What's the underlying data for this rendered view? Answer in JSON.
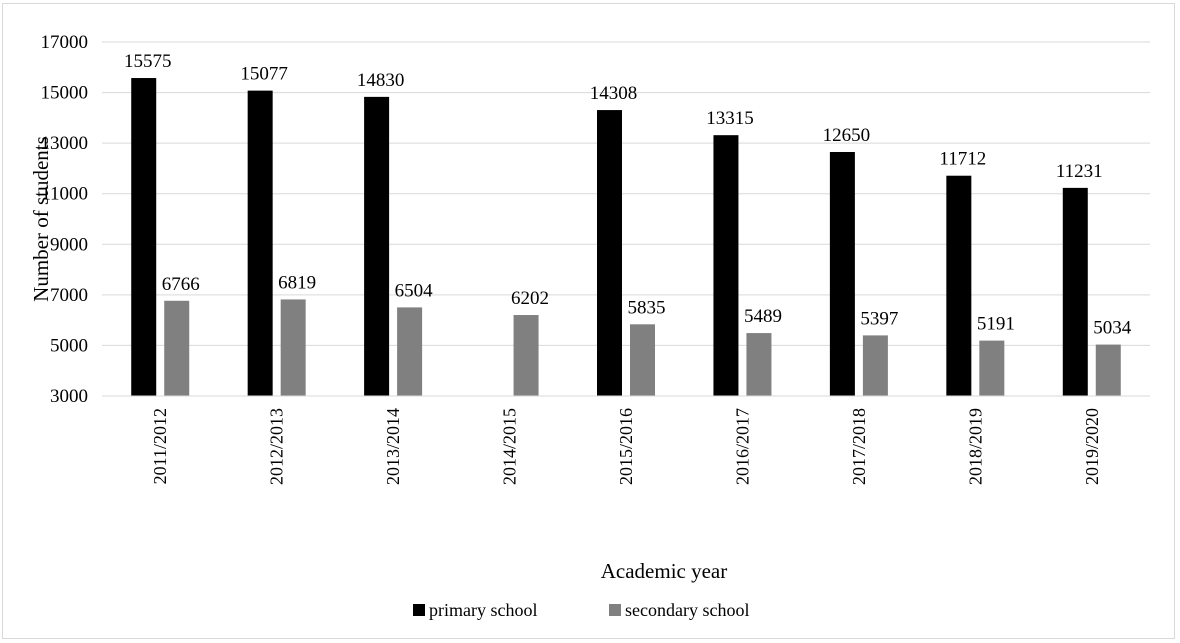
{
  "chart_data": {
    "type": "bar",
    "categories": [
      "2011/2012",
      "2012/2013",
      "2013/2014",
      "2014/2015",
      "2015/2016",
      "2016/2017",
      "2017/2018",
      "2018/2019",
      "2019/2020"
    ],
    "series": [
      {
        "name": "primary school",
        "color": "#000000",
        "values": [
          15575,
          15077,
          14830,
          null,
          14308,
          13315,
          12650,
          11712,
          11231
        ]
      },
      {
        "name": "secondary school",
        "color": "#808080",
        "values": [
          6766,
          6819,
          6504,
          6202,
          5835,
          5489,
          5397,
          5191,
          5034
        ]
      }
    ],
    "xlabel": "Academic year",
    "ylabel": "Number of students",
    "ylim": [
      3000,
      17000
    ],
    "yticks": [
      3000,
      5000,
      7000,
      9000,
      11000,
      13000,
      15000,
      17000
    ],
    "grid": true,
    "legend": "bottom"
  }
}
